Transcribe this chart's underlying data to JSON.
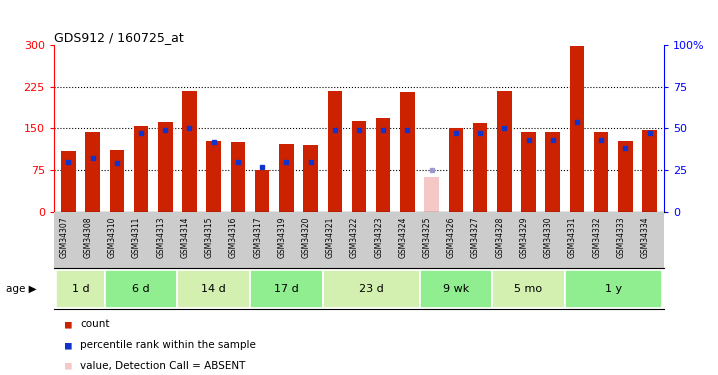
{
  "title": "GDS912 / 160725_at",
  "samples": [
    "GSM34307",
    "GSM34308",
    "GSM34310",
    "GSM34311",
    "GSM34313",
    "GSM34314",
    "GSM34315",
    "GSM34316",
    "GSM34317",
    "GSM34319",
    "GSM34320",
    "GSM34321",
    "GSM34322",
    "GSM34323",
    "GSM34324",
    "GSM34325",
    "GSM34326",
    "GSM34327",
    "GSM34328",
    "GSM34329",
    "GSM34330",
    "GSM34331",
    "GSM34332",
    "GSM34333",
    "GSM34334"
  ],
  "count_values": [
    110,
    143,
    112,
    155,
    162,
    218,
    128,
    125,
    75,
    122,
    120,
    218,
    163,
    168,
    215,
    62,
    150,
    160,
    218,
    143,
    143,
    298,
    143,
    128,
    148
  ],
  "rank_values": [
    30,
    32,
    29,
    47,
    49,
    50,
    42,
    30,
    27,
    30,
    30,
    49,
    49,
    49,
    49,
    25,
    47,
    47,
    50,
    43,
    43,
    54,
    43,
    38,
    47
  ],
  "absent_mask": [
    false,
    false,
    false,
    false,
    false,
    false,
    false,
    false,
    false,
    false,
    false,
    false,
    false,
    false,
    false,
    true,
    false,
    false,
    false,
    false,
    false,
    false,
    false,
    false,
    false
  ],
  "absent_rank_val": 25,
  "absent_bar_idx": 15,
  "age_groups": [
    {
      "label": "1 d",
      "start": 0,
      "end": 2,
      "color": "#d4f0b0"
    },
    {
      "label": "6 d",
      "start": 2,
      "end": 5,
      "color": "#90ee90"
    },
    {
      "label": "14 d",
      "start": 5,
      "end": 8,
      "color": "#d4f0b0"
    },
    {
      "label": "17 d",
      "start": 8,
      "end": 11,
      "color": "#90ee90"
    },
    {
      "label": "23 d",
      "start": 11,
      "end": 15,
      "color": "#d4f0b0"
    },
    {
      "label": "9 wk",
      "start": 15,
      "end": 18,
      "color": "#90ee90"
    },
    {
      "label": "5 mo",
      "start": 18,
      "end": 21,
      "color": "#d4f0b0"
    },
    {
      "label": "1 y",
      "start": 21,
      "end": 25,
      "color": "#90ee90"
    }
  ],
  "ylim_left": [
    0,
    300
  ],
  "ylim_right": [
    0,
    100
  ],
  "yticks_left": [
    0,
    75,
    150,
    225,
    300
  ],
  "yticks_right": [
    0,
    25,
    50,
    75,
    100
  ],
  "bar_color": "#cc2200",
  "rank_color": "#1133cc",
  "absent_bar_color": "#f5c8c8",
  "absent_rank_color": "#9999cc",
  "bg_color": "#ffffff",
  "xlabels_bg": "#cccccc"
}
